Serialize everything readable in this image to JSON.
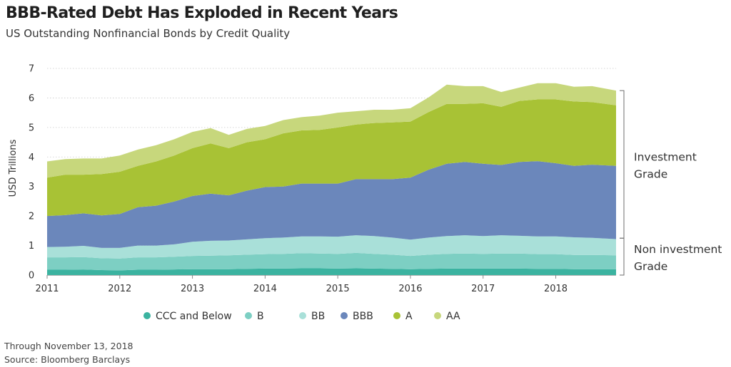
{
  "title": "BBB-Rated Debt Has Exploded in Recent Years",
  "subtitle": "US Outstanding Nonfinancial Bonds by Credit Quality",
  "footnote_date": "Through November 13, 2018",
  "footnote_source": "Source: Bloomberg Barclays",
  "colors": {
    "CCC and Below": "#3bb3a0",
    "B": "#7dcfc3",
    "BB": "#a9e0d9",
    "BBB": "#6b87bb",
    "A": "#a8c235",
    "AA": "#c7d77c"
  },
  "chart_data": {
    "type": "area",
    "stacked": true,
    "title": "BBB-Rated Debt Has Exploded in Recent Years",
    "subtitle": "US Outstanding Nonfinancial Bonds by Credit Quality",
    "ylabel": "USD Trillions",
    "xlabel": "",
    "ylim": [
      0,
      7
    ],
    "yticks": [
      0,
      1,
      2,
      3,
      4,
      5,
      6,
      7
    ],
    "xticks": [
      "2011",
      "2012",
      "2013",
      "2014",
      "2015",
      "2016",
      "2017",
      "2018"
    ],
    "grid": "horizontal",
    "legend_position": "bottom",
    "x": [
      2011.0,
      2011.25,
      2011.5,
      2011.75,
      2012.0,
      2012.25,
      2012.5,
      2012.75,
      2013.0,
      2013.25,
      2013.5,
      2013.75,
      2014.0,
      2014.25,
      2014.5,
      2014.75,
      2015.0,
      2015.25,
      2015.5,
      2015.75,
      2016.0,
      2016.25,
      2016.5,
      2016.75,
      2017.0,
      2017.25,
      2017.5,
      2017.75,
      2018.0,
      2018.25,
      2018.5,
      2018.83
    ],
    "series": [
      {
        "name": "CCC and Below",
        "values": [
          0.18,
          0.18,
          0.19,
          0.17,
          0.16,
          0.18,
          0.18,
          0.19,
          0.2,
          0.2,
          0.2,
          0.21,
          0.22,
          0.22,
          0.23,
          0.23,
          0.22,
          0.23,
          0.22,
          0.21,
          0.2,
          0.21,
          0.22,
          0.22,
          0.22,
          0.22,
          0.22,
          0.21,
          0.21,
          0.2,
          0.2,
          0.2
        ]
      },
      {
        "name": "B",
        "values": [
          0.42,
          0.42,
          0.42,
          0.4,
          0.4,
          0.42,
          0.42,
          0.43,
          0.45,
          0.46,
          0.47,
          0.48,
          0.49,
          0.5,
          0.51,
          0.5,
          0.5,
          0.52,
          0.5,
          0.48,
          0.45,
          0.48,
          0.5,
          0.51,
          0.5,
          0.51,
          0.51,
          0.5,
          0.5,
          0.48,
          0.48,
          0.47
        ]
      },
      {
        "name": "BB",
        "values": [
          0.35,
          0.36,
          0.38,
          0.35,
          0.36,
          0.4,
          0.4,
          0.42,
          0.48,
          0.5,
          0.5,
          0.52,
          0.54,
          0.55,
          0.57,
          0.58,
          0.58,
          0.6,
          0.6,
          0.58,
          0.55,
          0.58,
          0.6,
          0.62,
          0.6,
          0.62,
          0.6,
          0.6,
          0.6,
          0.6,
          0.58,
          0.55
        ]
      },
      {
        "name": "BBB",
        "values": [
          1.05,
          1.07,
          1.1,
          1.1,
          1.15,
          1.3,
          1.35,
          1.45,
          1.55,
          1.6,
          1.53,
          1.65,
          1.73,
          1.73,
          1.79,
          1.79,
          1.8,
          1.9,
          1.93,
          1.98,
          2.1,
          2.3,
          2.45,
          2.48,
          2.45,
          2.38,
          2.5,
          2.55,
          2.48,
          2.42,
          2.48,
          2.48
        ]
      },
      {
        "name": "A",
        "values": [
          1.3,
          1.37,
          1.31,
          1.4,
          1.43,
          1.4,
          1.5,
          1.56,
          1.62,
          1.7,
          1.6,
          1.64,
          1.62,
          1.8,
          1.8,
          1.82,
          1.9,
          1.85,
          1.9,
          1.92,
          1.9,
          1.95,
          2.03,
          1.97,
          2.05,
          1.97,
          2.07,
          2.09,
          2.16,
          2.18,
          2.12,
          2.05
        ]
      },
      {
        "name": "AA",
        "values": [
          0.55,
          0.53,
          0.55,
          0.53,
          0.55,
          0.55,
          0.55,
          0.55,
          0.55,
          0.52,
          0.45,
          0.45,
          0.45,
          0.45,
          0.45,
          0.48,
          0.5,
          0.45,
          0.45,
          0.43,
          0.45,
          0.5,
          0.65,
          0.6,
          0.58,
          0.5,
          0.45,
          0.55,
          0.55,
          0.5,
          0.54,
          0.5
        ]
      }
    ],
    "annotations": [
      {
        "text": [
          "Investment",
          "Grade"
        ],
        "range": [
          1.25,
          6.25
        ]
      },
      {
        "text": [
          "Non investment",
          "Grade"
        ],
        "range": [
          0,
          1.25
        ]
      }
    ]
  }
}
